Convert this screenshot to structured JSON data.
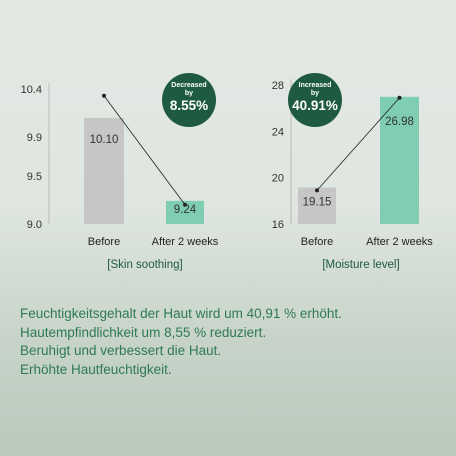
{
  "chart_data": [
    {
      "type": "bar",
      "title": "[Skin soothing]",
      "categories": [
        "Before",
        "After 2 weeks"
      ],
      "values": [
        10.1,
        9.24
      ],
      "value_labels": [
        "10.10",
        "9.24"
      ],
      "ylim": [
        9.0,
        10.4
      ],
      "yticks": [
        9.0,
        9.5,
        9.9,
        10.4
      ],
      "ytick_labels": [
        "9.0",
        "9.5",
        "9.9",
        "10.4"
      ],
      "grid": false,
      "connector_points": [
        10.33,
        9.2
      ],
      "badge": {
        "top": "Decreased",
        "mid": "by",
        "value": "8.55%"
      },
      "colors": {
        "before": "#c6c6c6",
        "after": "#7fcdb2",
        "badge": "#1d5a40"
      }
    },
    {
      "type": "bar",
      "title": "[Moisture level]",
      "categories": [
        "Before",
        "After 2 weeks"
      ],
      "values": [
        19.15,
        26.98
      ],
      "value_labels": [
        "19.15",
        "26.98"
      ],
      "ylim": [
        16,
        28
      ],
      "yticks": [
        16,
        20,
        24,
        28
      ],
      "ytick_labels": [
        "16",
        "20",
        "24",
        "28"
      ],
      "grid": false,
      "connector_points": [
        18.9,
        26.9
      ],
      "badge": {
        "top": "Increased",
        "mid": "by",
        "value": "40.91%"
      },
      "colors": {
        "before": "#c6c6c6",
        "after": "#7fcdb2",
        "badge": "#1d5a40"
      }
    }
  ],
  "text_lines": [
    "Feuchtigkeitsgehalt der Haut wird um 40,91 % erhöht.",
    "Hautempfindlichkeit um 8,55 % reduziert.",
    "Beruhigt und verbessert die Haut.",
    "Erhöhte Hautfeuchtigkeit."
  ]
}
